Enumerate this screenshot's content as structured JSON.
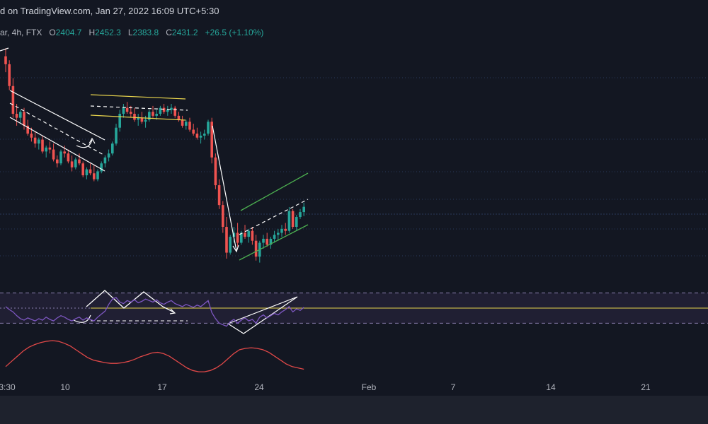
{
  "header": {
    "text": "d on TradingView.com, Jan 27, 2022 16:09 UTC+5:30"
  },
  "symbol_bar": {
    "prefix": "ar, 4h, FTX",
    "open_label": "O",
    "open": "2404.7",
    "high_label": "H",
    "high": "2452.3",
    "low_label": "L",
    "low": "2383.8",
    "close_label": "C",
    "close": "2431.2",
    "change": "+26.5 (+1.10%)"
  },
  "colors": {
    "background": "#131722",
    "up": "#26a69a",
    "down": "#ef5350",
    "rsi_line": "#7e57c2",
    "rsi_band": "#2a2440",
    "yellow_channel": "#e8d44d",
    "green_channel": "#4caf50",
    "drawing": "#ffffff",
    "oscillator": "#e04848"
  },
  "chart_data": {
    "type": "candlestick",
    "xlabel": "",
    "ylabel": "",
    "x_ticks": [
      "3:30",
      "10",
      "17",
      "24",
      "Feb",
      "7",
      "14",
      "21"
    ],
    "candles": [
      [
        3190,
        3230,
        3110,
        3150
      ],
      [
        3150,
        3170,
        3020,
        3040
      ],
      [
        3040,
        3080,
        2880,
        2900
      ],
      [
        2900,
        2950,
        2840,
        2880
      ],
      [
        2880,
        2920,
        2850,
        2910
      ],
      [
        2910,
        2930,
        2820,
        2840
      ],
      [
        2840,
        2870,
        2790,
        2800
      ],
      [
        2800,
        2830,
        2760,
        2780
      ],
      [
        2780,
        2810,
        2730,
        2750
      ],
      [
        2750,
        2780,
        2720,
        2770
      ],
      [
        2770,
        2790,
        2700,
        2710
      ],
      [
        2710,
        2740,
        2680,
        2730
      ],
      [
        2730,
        2760,
        2700,
        2720
      ],
      [
        2720,
        2750,
        2660,
        2670
      ],
      [
        2670,
        2690,
        2630,
        2650
      ],
      [
        2650,
        2720,
        2640,
        2710
      ],
      [
        2710,
        2740,
        2680,
        2700
      ],
      [
        2700,
        2720,
        2650,
        2660
      ],
      [
        2660,
        2690,
        2610,
        2630
      ],
      [
        2630,
        2680,
        2620,
        2670
      ],
      [
        2670,
        2700,
        2640,
        2650
      ],
      [
        2650,
        2660,
        2580,
        2590
      ],
      [
        2590,
        2630,
        2570,
        2620
      ],
      [
        2620,
        2650,
        2590,
        2600
      ],
      [
        2600,
        2640,
        2560,
        2570
      ],
      [
        2570,
        2620,
        2560,
        2610
      ],
      [
        2610,
        2660,
        2600,
        2650
      ],
      [
        2650,
        2690,
        2630,
        2680
      ],
      [
        2680,
        2720,
        2660,
        2700
      ],
      [
        2700,
        2760,
        2690,
        2750
      ],
      [
        2750,
        2850,
        2740,
        2830
      ],
      [
        2830,
        2920,
        2810,
        2900
      ],
      [
        2900,
        2950,
        2880,
        2930
      ],
      [
        2930,
        2960,
        2900,
        2910
      ],
      [
        2910,
        2940,
        2880,
        2900
      ],
      [
        2900,
        2930,
        2860,
        2870
      ],
      [
        2870,
        2900,
        2840,
        2880
      ],
      [
        2880,
        2910,
        2850,
        2860
      ],
      [
        2860,
        2890,
        2830,
        2870
      ],
      [
        2870,
        2920,
        2860,
        2910
      ],
      [
        2910,
        2940,
        2880,
        2890
      ],
      [
        2890,
        2920,
        2870,
        2900
      ],
      [
        2900,
        2940,
        2890,
        2930
      ],
      [
        2930,
        2950,
        2900,
        2910
      ],
      [
        2910,
        2940,
        2890,
        2920
      ],
      [
        2920,
        2950,
        2900,
        2930
      ],
      [
        2930,
        2940,
        2880,
        2890
      ],
      [
        2890,
        2910,
        2860,
        2870
      ],
      [
        2870,
        2890,
        2830,
        2840
      ],
      [
        2840,
        2870,
        2820,
        2860
      ],
      [
        2860,
        2880,
        2810,
        2820
      ],
      [
        2820,
        2850,
        2790,
        2800
      ],
      [
        2800,
        2830,
        2770,
        2780
      ],
      [
        2780,
        2810,
        2750,
        2790
      ],
      [
        2790,
        2820,
        2770,
        2800
      ],
      [
        2800,
        2870,
        2790,
        2860
      ],
      [
        2860,
        2880,
        2650,
        2680
      ],
      [
        2680,
        2700,
        2520,
        2540
      ],
      [
        2540,
        2570,
        2420,
        2440
      ],
      [
        2440,
        2460,
        2300,
        2330
      ],
      [
        2330,
        2380,
        2170,
        2200
      ],
      [
        2200,
        2290,
        2190,
        2280
      ],
      [
        2280,
        2330,
        2250,
        2300
      ],
      [
        2300,
        2350,
        2230,
        2250
      ],
      [
        2250,
        2310,
        2240,
        2300
      ],
      [
        2300,
        2340,
        2270,
        2280
      ],
      [
        2280,
        2320,
        2250,
        2310
      ],
      [
        2310,
        2330,
        2240,
        2260
      ],
      [
        2260,
        2290,
        2160,
        2180
      ],
      [
        2180,
        2260,
        2150,
        2250
      ],
      [
        2250,
        2290,
        2220,
        2270
      ],
      [
        2270,
        2300,
        2230,
        2240
      ],
      [
        2240,
        2280,
        2220,
        2270
      ],
      [
        2270,
        2310,
        2250,
        2290
      ],
      [
        2290,
        2320,
        2260,
        2300
      ],
      [
        2300,
        2340,
        2280,
        2320
      ],
      [
        2320,
        2350,
        2290,
        2310
      ],
      [
        2310,
        2430,
        2300,
        2410
      ],
      [
        2410,
        2420,
        2320,
        2330
      ],
      [
        2330,
        2390,
        2310,
        2380
      ],
      [
        2380,
        2420,
        2370,
        2404.7
      ],
      [
        2404.7,
        2452.3,
        2383.8,
        2431.2
      ]
    ],
    "rsi": [
      52,
      48,
      45,
      40,
      36,
      34,
      37,
      35,
      33,
      36,
      34,
      38,
      35,
      33,
      37,
      40,
      38,
      35,
      33,
      36,
      38,
      34,
      37,
      35,
      33,
      38,
      42,
      46,
      55,
      62,
      64,
      58,
      56,
      60,
      58,
      61,
      57,
      59,
      62,
      60,
      58,
      61,
      57,
      55,
      58,
      60,
      56,
      54,
      52,
      55,
      53,
      51,
      54,
      52,
      56,
      60,
      44,
      36,
      30,
      28,
      26,
      32,
      35,
      30,
      34,
      37,
      33,
      35,
      30,
      38,
      41,
      37,
      40,
      43,
      41,
      45,
      48,
      52,
      45,
      49,
      47,
      51
    ],
    "oscillator": [
      10,
      18,
      26,
      34,
      40,
      44,
      47,
      49,
      50,
      49,
      46,
      42,
      36,
      30,
      24,
      20,
      18,
      16,
      15,
      15,
      16,
      18,
      21,
      25,
      28,
      31,
      32,
      30,
      26,
      20,
      14,
      8,
      4,
      2,
      2,
      4,
      8,
      14,
      22,
      30,
      36,
      38,
      39,
      38,
      36,
      32,
      26,
      20,
      14,
      10,
      8,
      6
    ]
  }
}
